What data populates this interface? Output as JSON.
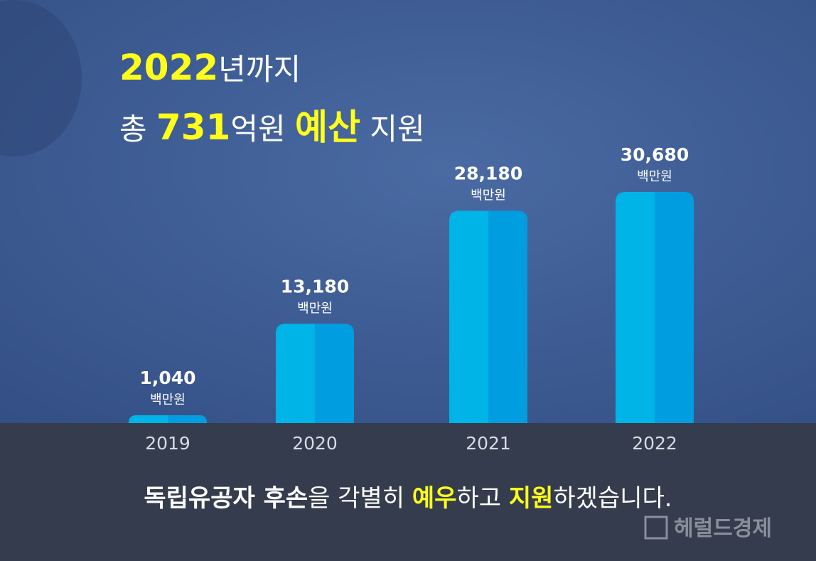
{
  "chart_data": {
    "type": "bar",
    "title_lines": [
      [
        {
          "text": "2022",
          "color": "#ffff1a",
          "bold": true,
          "size": 50
        },
        {
          "text": "년까지",
          "color": "#ffffff",
          "bold": false,
          "size": 42
        }
      ],
      [
        {
          "text": "총 ",
          "color": "#ffffff",
          "bold": false,
          "size": 42
        },
        {
          "text": "731",
          "color": "#ffff1a",
          "bold": true,
          "size": 50
        },
        {
          "text": "억원 ",
          "color": "#ffffff",
          "bold": false,
          "size": 42
        },
        {
          "text": "예산",
          "color": "#ffff1a",
          "bold": true,
          "size": 50
        },
        {
          "text": " 지원",
          "color": "#ffffff",
          "bold": false,
          "size": 42
        }
      ]
    ],
    "categories": [
      "2019",
      "2020",
      "2021",
      "2022"
    ],
    "values": [
      1040,
      13180,
      28180,
      30680
    ],
    "value_labels": [
      "1,040",
      "13,180",
      "28,180",
      "30,680"
    ],
    "unit": "백만원",
    "colors": [
      "#00b4e8",
      "#009de0"
    ],
    "footer": [
      {
        "text": "독립유공자 후손",
        "color": "#ffffff",
        "bold": true
      },
      {
        "text": "을 각별히 ",
        "color": "#ffffff",
        "bold": false
      },
      {
        "text": "예우",
        "color": "#ffff1a",
        "bold": true
      },
      {
        "text": "하고 ",
        "color": "#ffffff",
        "bold": false
      },
      {
        "text": "지원",
        "color": "#ffff1a",
        "bold": true
      },
      {
        "text": "하겠습니다.",
        "color": "#ffffff",
        "bold": false
      }
    ],
    "watermark": "헤럴드경제"
  }
}
